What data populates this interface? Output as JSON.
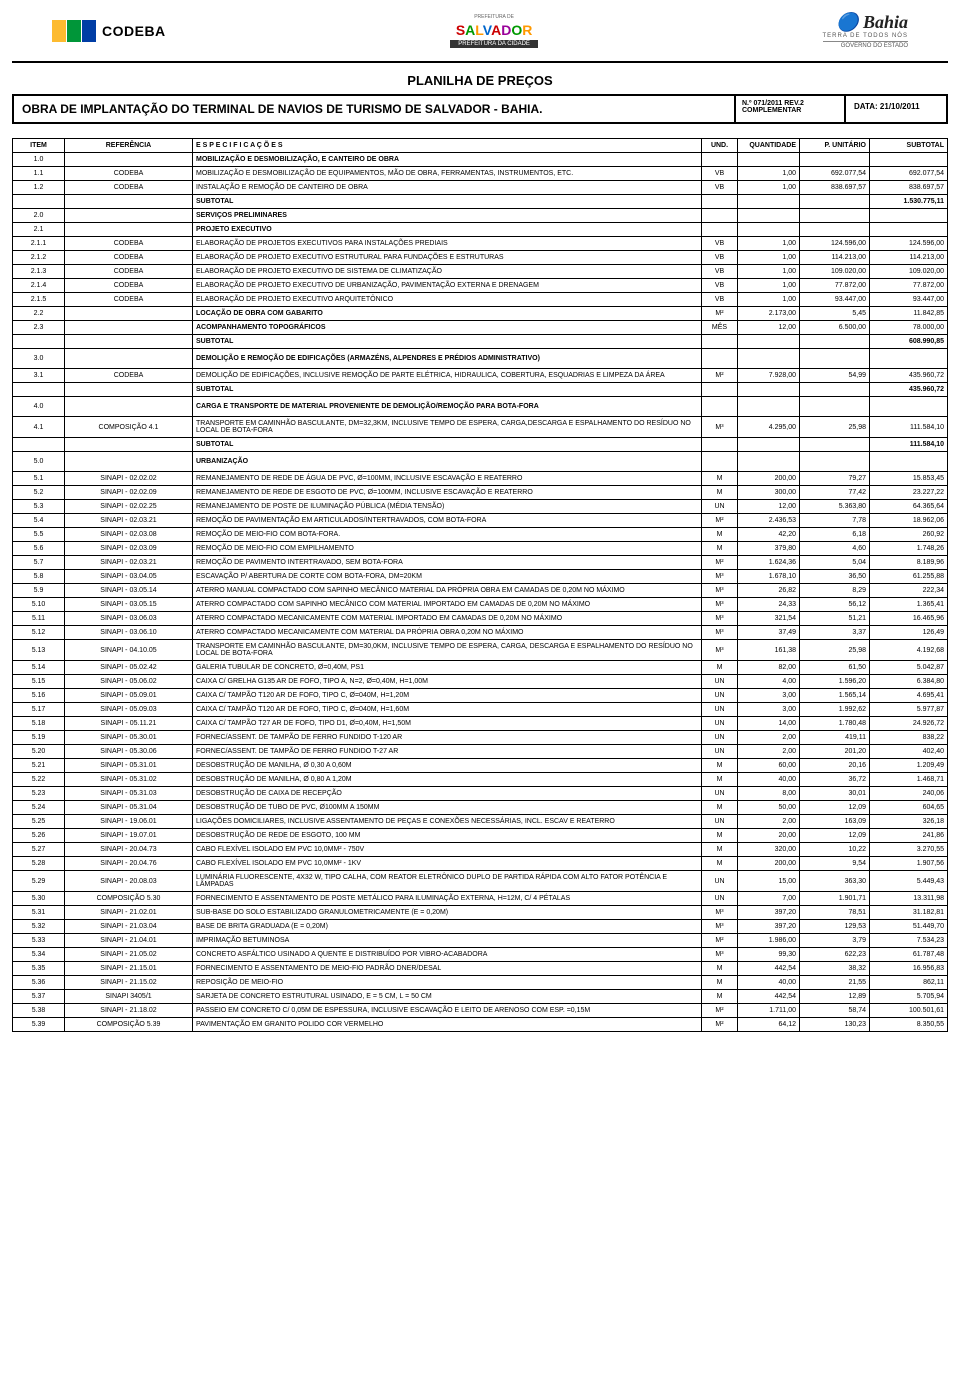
{
  "header": {
    "codeba": "CODEBA",
    "salvador_top": "PREFEITURA DE",
    "salvador": "SALVADOR",
    "salvador_sub": "PREFEITURA DA CIDADE",
    "bahia": "Bahia",
    "bahia_tag": "TERRA DE TODOS NÓS",
    "bahia_gov": "GOVERNO DO ESTADO"
  },
  "doc": {
    "title": "PLANILHA DE PREÇOS",
    "obra": "OBRA DE IMPLANTAÇÃO DO TERMINAL DE NAVIOS DE TURISMO DE SALVADOR - BAHIA.",
    "rev_num": "N.º 071/2011    REV.2",
    "rev_comp": "COMPLEMENTAR",
    "data": "DATA: 21/10/2011"
  },
  "columns": {
    "item": "ITEM",
    "ref": "REFERÊNCIA",
    "esp": "E S P E C I F I C A Ç Õ E S",
    "und": "UND.",
    "qtd": "QUANTIDADE",
    "unit": "P. UNITÁRIO",
    "sub": "SUBTOTAL"
  },
  "rows": [
    {
      "type": "section",
      "item": "1.0",
      "esp": "MOBILIZAÇÃO E DESMOBILIZAÇÃO, E CANTEIRO DE OBRA"
    },
    {
      "item": "1.1",
      "ref": "CODEBA",
      "esp": "MOBILIZAÇÃO E DESMOBILIZAÇÃO DE EQUIPAMENTOS, MÃO DE OBRA, FERRAMENTAS, INSTRUMENTOS, ETC.",
      "und": "VB",
      "qtd": "1,00",
      "unit": "692.077,54",
      "sub": "692.077,54"
    },
    {
      "item": "1.2",
      "ref": "CODEBA",
      "esp": "INSTALAÇÃO E REMOÇÃO DE CANTEIRO DE OBRA",
      "und": "VB",
      "qtd": "1,00",
      "unit": "838.697,57",
      "sub": "838.697,57"
    },
    {
      "type": "subtotal",
      "esp": "SUBTOTAL",
      "sub": "1.530.775,11"
    },
    {
      "type": "section",
      "item": "2.0",
      "esp": "SERVIÇOS PRELIMINARES"
    },
    {
      "type": "section",
      "item": "2.1",
      "esp": "PROJETO EXECUTIVO"
    },
    {
      "item": "2.1.1",
      "ref": "CODEBA",
      "esp": "ELABORAÇÃO DE PROJETOS EXECUTIVOS PARA INSTALAÇÕES PREDIAIS",
      "und": "VB",
      "qtd": "1,00",
      "unit": "124.596,00",
      "sub": "124.596,00"
    },
    {
      "item": "2.1.2",
      "ref": "CODEBA",
      "esp": "ELABORAÇÃO DE PROJETO EXECUTIVO ESTRUTURAL PARA FUNDAÇÕES E ESTRUTURAS",
      "und": "VB",
      "qtd": "1,00",
      "unit": "114.213,00",
      "sub": "114.213,00"
    },
    {
      "item": "2.1.3",
      "ref": "CODEBA",
      "esp": "ELABORAÇÃO DE PROJETO EXECUTIVO DE SISTEMA DE CLIMATIZAÇÃO",
      "und": "VB",
      "qtd": "1,00",
      "unit": "109.020,00",
      "sub": "109.020,00"
    },
    {
      "item": "2.1.4",
      "ref": "CODEBA",
      "esp": "ELABORAÇÃO DE PROJETO EXECUTIVO DE URBANIZAÇÃO, PAVIMENTAÇÃO EXTERNA E DRENAGEM",
      "und": "VB",
      "qtd": "1,00",
      "unit": "77.872,00",
      "sub": "77.872,00"
    },
    {
      "item": "2.1.5",
      "ref": "CODEBA",
      "esp": "ELABORAÇÃO DE PROJETO EXECUTIVO ARQUITETÔNICO",
      "und": "VB",
      "qtd": "1,00",
      "unit": "93.447,00",
      "sub": "93.447,00"
    },
    {
      "type": "section",
      "item": "2.2",
      "esp": "LOCAÇÃO DE OBRA COM GABARITO",
      "und": "M²",
      "qtd": "2.173,00",
      "unit": "5,45",
      "sub": "11.842,85"
    },
    {
      "type": "section",
      "item": "2.3",
      "esp": "ACOMPANHAMENTO TOPOGRÁFICOS",
      "und": "MÊS",
      "qtd": "12,00",
      "unit": "6.500,00",
      "sub": "78.000,00"
    },
    {
      "type": "subtotal",
      "esp": "SUBTOTAL",
      "sub": "608.990,85"
    },
    {
      "type": "section",
      "item": "3.0",
      "esp": "DEMOLIÇÃO E REMOÇÃO DE EDIFICAÇÕES (ARMAZÉNS, ALPENDRES E PRÉDIOS ADMINISTRATIVO)",
      "tall": true
    },
    {
      "item": "3.1",
      "ref": "CODEBA",
      "esp": "DEMOLIÇÃO DE EDIFICAÇÕES, INCLUSIVE REMOÇÃO DE PARTE ELÉTRICA, HIDRAULICA, COBERTURA, ESQUADRIAS E LIMPEZA DA ÁREA",
      "und": "M²",
      "qtd": "7.928,00",
      "unit": "54,99",
      "sub": "435.960,72"
    },
    {
      "type": "subtotal",
      "esp": "SUBTOTAL",
      "sub": "435.960,72"
    },
    {
      "type": "section",
      "item": "4.0",
      "esp": "CARGA E TRANSPORTE DE MATERIAL PROVENIENTE DE DEMOLIÇÃO/REMOÇÃO PARA BOTA-FORA",
      "tall": true
    },
    {
      "item": "4.1",
      "ref": "COMPOSIÇÃO          4.1",
      "esp": "TRANSPORTE EM CAMINHÃO BASCULANTE, DM=32,3KM, INCLUSIVE TEMPO DE ESPERA, CARGA,DESCARGA E ESPALHAMENTO DO RESÍDUO NO LOCAL DE BOTA-FORA",
      "und": "M³",
      "qtd": "4.295,00",
      "unit": "25,98",
      "sub": "111.584,10"
    },
    {
      "type": "subtotal",
      "esp": "SUBTOTAL",
      "sub": "111.584,10"
    },
    {
      "type": "section",
      "item": "5.0",
      "esp": "URBANIZAÇÃO",
      "tall": true
    },
    {
      "item": "5.1",
      "ref": "SINAPI - 02.02.02",
      "esp": "REMANEJAMENTO DE REDE DE ÁGUA DE PVC, Ø=100MM, INCLUSIVE ESCAVAÇÃO E REATERRO",
      "und": "M",
      "qtd": "200,00",
      "unit": "79,27",
      "sub": "15.853,45"
    },
    {
      "item": "5.2",
      "ref": "SINAPI - 02.02.09",
      "esp": "REMANEJAMENTO DE REDE DE ESGOTO DE PVC, Ø=100MM, INCLUSIVE ESCAVAÇÃO E REATERRO",
      "und": "M",
      "qtd": "300,00",
      "unit": "77,42",
      "sub": "23.227,22"
    },
    {
      "item": "5.3",
      "ref": "SINAPI - 02.02.25",
      "esp": "REMANEJAMENTO DE POSTE DE ILUMINAÇÃO PÚBLICA (MÉDIA TENSÃO)",
      "und": "UN",
      "qtd": "12,00",
      "unit": "5.363,80",
      "sub": "64.365,64"
    },
    {
      "item": "5.4",
      "ref": "SINAPI - 02.03.21",
      "esp": "REMOÇÃO DE PAVIMENTAÇÃO EM ARTICULADOS/INTERTRAVADOS, COM BOTA-FORA",
      "und": "M²",
      "qtd": "2.436,53",
      "unit": "7,78",
      "sub": "18.962,06"
    },
    {
      "item": "5.5",
      "ref": "SINAPI - 02.03.08",
      "esp": "REMOÇÃO DE MEIO-FIO COM BOTA-FORA.",
      "und": "M",
      "qtd": "42,20",
      "unit": "6,18",
      "sub": "260,92"
    },
    {
      "item": "5.6",
      "ref": "SINAPI - 02.03.09",
      "esp": "REMOÇÃO DE MEIO-FIO COM EMPILHAMENTO",
      "und": "M",
      "qtd": "379,80",
      "unit": "4,60",
      "sub": "1.748,26"
    },
    {
      "item": "5.7",
      "ref": "SINAPI - 02.03.21",
      "esp": "REMOÇÃO DE PAVIMENTO INTERTRAVADO, SEM BOTA-FORA",
      "und": "M²",
      "qtd": "1.624,36",
      "unit": "5,04",
      "sub": "8.189,96"
    },
    {
      "item": "5.8",
      "ref": "SINAPI - 03.04.05",
      "esp": "ESCAVAÇÃO P/ ABERTURA DE CORTE COM BOTA-FORA, DM=20KM",
      "und": "M³",
      "qtd": "1.678,10",
      "unit": "36,50",
      "sub": "61.255,88"
    },
    {
      "item": "5.9",
      "ref": "SINAPI - 03.05.14",
      "esp": "ATERRO MANUAL COMPACTADO COM SAPINHO MECÂNICO MATERIAL DA PRÓPRIA OBRA EM CAMADAS DE 0,20M NO MÁXIMO",
      "und": "M³",
      "qtd": "26,82",
      "unit": "8,29",
      "sub": "222,34"
    },
    {
      "item": "5.10",
      "ref": "SINAPI - 03.05.15",
      "esp": "ATERRO COMPACTADO COM SAPINHO MECÂNICO COM MATERIAL IMPORTADO EM CAMADAS DE 0,20M NO MÁXIMO",
      "und": "M³",
      "qtd": "24,33",
      "unit": "56,12",
      "sub": "1.365,41"
    },
    {
      "item": "5.11",
      "ref": "SINAPI - 03.06.03",
      "esp": "ATERRO COMPACTADO MECANICAMENTE COM MATERIAL IMPORTADO EM CAMADAS DE 0,20M NO MÁXIMO",
      "und": "M³",
      "qtd": "321,54",
      "unit": "51,21",
      "sub": "16.465,96"
    },
    {
      "item": "5.12",
      "ref": "SINAPI - 03.06.10",
      "esp": "ATERRO COMPACTADO MECANICAMENTE COM MATERIAL DA PRÓPRIA OBRA 0,20M NO MÁXIMO",
      "und": "M³",
      "qtd": "37,49",
      "unit": "3,37",
      "sub": "126,49"
    },
    {
      "item": "5.13",
      "ref": "SINAPI - 04.10.05",
      "esp": " TRANSPORTE EM CAMINHÃO BASCULANTE, DM=30,0KM, INCLUSIVE TEMPO DE ESPERA, CARGA, DESCARGA E ESPALHAMENTO DO RESÍDUO NO LOCAL DE BOTA-FORA",
      "und": "M³",
      "qtd": "161,38",
      "unit": "25,98",
      "sub": "4.192,68"
    },
    {
      "item": "5.14",
      "ref": "SINAPI - 05.02.42",
      "esp": "GALERIA TUBULAR DE CONCRETO, Ø=0,40M, PS1",
      "und": "M",
      "qtd": "82,00",
      "unit": "61,50",
      "sub": "5.042,87"
    },
    {
      "item": "5.15",
      "ref": "SINAPI - 05.06.02",
      "esp": "CAIXA C/ GRELHA G135 AR DE FOFO, TIPO A, N=2, Ø=0,40M, H=1,00M",
      "und": "UN",
      "qtd": "4,00",
      "unit": "1.596,20",
      "sub": "6.384,80"
    },
    {
      "item": "5.16",
      "ref": "SINAPI - 05.09.01",
      "esp": "CAIXA C/ TAMPÃO T120 AR DE FOFO, TIPO C, Ø=040M, H=1,20M",
      "und": "UN",
      "qtd": "3,00",
      "unit": "1.565,14",
      "sub": "4.695,41"
    },
    {
      "item": "5.17",
      "ref": "SINAPI - 05.09.03",
      "esp": "CAIXA C/ TAMPÃO T120 AR DE FOFO, TIPO C, Ø=040M, H=1,60M",
      "und": "UN",
      "qtd": "3,00",
      "unit": "1.992,62",
      "sub": "5.977,87"
    },
    {
      "item": "5.18",
      "ref": "SINAPI - 05.11.21",
      "esp": "CAIXA C/ TAMPÃO T27 AR DE FOFO, TIPO D1, Ø=0,40M, H=1,50M",
      "und": "UN",
      "qtd": "14,00",
      "unit": "1.780,48",
      "sub": "24.926,72"
    },
    {
      "item": "5.19",
      "ref": "SINAPI - 05.30.01",
      "esp": "FORNEC/ASSENT. DE TAMPÃO DE FERRO FUNDIDO T-120 AR",
      "und": "UN",
      "qtd": "2,00",
      "unit": "419,11",
      "sub": "838,22"
    },
    {
      "item": "5.20",
      "ref": "SINAPI - 05.30.06",
      "esp": "FORNEC/ASSENT. DE TAMPÃO DE FERRO FUNDIDO T-27 AR",
      "und": "UN",
      "qtd": "2,00",
      "unit": "201,20",
      "sub": "402,40"
    },
    {
      "item": "5.21",
      "ref": "SINAPI - 05.31.01",
      "esp": "DESOBSTRUÇÃO DE MANILHA, Ø 0,30 A 0,60M",
      "und": "M",
      "qtd": "60,00",
      "unit": "20,16",
      "sub": "1.209,49"
    },
    {
      "item": "5.22",
      "ref": "SINAPI - 05.31.02",
      "esp": "DESOBSTRUÇÃO DE MANILHA, Ø 0,80 A 1,20M",
      "und": "M",
      "qtd": "40,00",
      "unit": "36,72",
      "sub": "1.468,71"
    },
    {
      "item": "5.23",
      "ref": "SINAPI - 05.31.03",
      "esp": "DESOBSTRUÇÃO DE CAIXA DE RECEPÇÃO",
      "und": "UN",
      "qtd": "8,00",
      "unit": "30,01",
      "sub": "240,06"
    },
    {
      "item": "5.24",
      "ref": "SINAPI - 05.31.04",
      "esp": "DESOBSTRUÇÃO DE TUBO DE PVC, Ø100MM A 150MM",
      "und": "M",
      "qtd": "50,00",
      "unit": "12,09",
      "sub": "604,65"
    },
    {
      "item": "5.25",
      "ref": "SINAPI - 19.06.01",
      "esp": "LIGAÇÕES DOMICILIARES, INCLUSIVE ASSENTAMENTO DE PEÇAS E CONEXÕES NECESSÁRIAS, INCL. ESCAV E REATERRO",
      "und": "UN",
      "qtd": "2,00",
      "unit": "163,09",
      "sub": "326,18"
    },
    {
      "item": "5.26",
      "ref": "SINAPI - 19.07.01",
      "esp": "DESOBSTRUÇÃO DE REDE DE ESGOTO, 100 MM",
      "und": "M",
      "qtd": "20,00",
      "unit": "12,09",
      "sub": "241,86"
    },
    {
      "item": "5.27",
      "ref": "SINAPI - 20.04.73",
      "esp": "CABO FLEXÍVEL ISOLADO EM PVC 10,0MM² - 750V",
      "und": "M",
      "qtd": "320,00",
      "unit": "10,22",
      "sub": "3.270,55"
    },
    {
      "item": "5.28",
      "ref": "SINAPI - 20.04.76",
      "esp": "CABO FLEXÍVEL ISOLADO EM PVC 10,0MM² - 1KV",
      "und": "M",
      "qtd": "200,00",
      "unit": "9,54",
      "sub": "1.907,56"
    },
    {
      "item": "5.29",
      "ref": "SINAPI - 20.08.03",
      "esp": "LUMINÁRIA FLUORESCENTE, 4X32 W, TIPO CALHA, COM REATOR ELETRÔNICO DUPLO DE PARTIDA RÁPIDA COM ALTO FATOR POTÊNCIA E LÂMPADAS",
      "und": "UN",
      "qtd": "15,00",
      "unit": "363,30",
      "sub": "5.449,43"
    },
    {
      "item": "5.30",
      "ref": "COMPOSIÇÃO          5.30",
      "esp": "FORNECIMENTO E ASSENTAMENTO DE POSTE METÁLICO PARA ILUMINAÇÃO EXTERNA, H=12M, C/ 4 PÉTALAS",
      "und": "UN",
      "qtd": "7,00",
      "unit": "1.901,71",
      "sub": "13.311,98"
    },
    {
      "item": "5.31",
      "ref": "SINAPI - 21.02.01",
      "esp": "SUB-BASE DO SOLO ESTABILIZADO GRANULOMETRICAMENTE (E = 0,20M)",
      "und": "M³",
      "qtd": "397,20",
      "unit": "78,51",
      "sub": "31.182,81"
    },
    {
      "item": "5.32",
      "ref": "SINAPI - 21.03.04",
      "esp": "BASE DE BRITA GRADUADA (E = 0,20M)",
      "und": "M³",
      "qtd": "397,20",
      "unit": "129,53",
      "sub": "51.449,70"
    },
    {
      "item": "5.33",
      "ref": "SINAPI - 21.04.01",
      "esp": "IMPRIMAÇÃO BETUMINOSA",
      "und": "M²",
      "qtd": "1.986,00",
      "unit": "3,79",
      "sub": "7.534,23"
    },
    {
      "item": "5.34",
      "ref": "SINAPI - 21.05.02",
      "esp": "CONCRETO ASFÁLTICO USINADO A QUENTE E DISTRIBUÍDO  POR VIBRO-ACABADORA",
      "und": "M³",
      "qtd": "99,30",
      "unit": "622,23",
      "sub": "61.787,48"
    },
    {
      "item": "5.35",
      "ref": "SINAPI - 21.15.01",
      "esp": "FORNECIMENTO E ASSENTAMENTO DE MEIO-FIO PADRÃO DNER/DESAL",
      "und": "M",
      "qtd": "442,54",
      "unit": "38,32",
      "sub": "16.956,83"
    },
    {
      "item": "5.36",
      "ref": "SINAPI - 21.15.02",
      "esp": "REPOSIÇÃO DE MEIO-FIO",
      "und": "M",
      "qtd": "40,00",
      "unit": "21,55",
      "sub": "862,11"
    },
    {
      "item": "5.37",
      "ref": "SINAPI 3405/1",
      "esp": "SARJETA DE CONCRETO ESTRUTURAL USINADO, E = 5 CM, L = 50 CM",
      "und": "M",
      "qtd": "442,54",
      "unit": "12,89",
      "sub": "5.705,94"
    },
    {
      "item": "5.38",
      "ref": "SINAPI - 21.18.02",
      "esp": "PASSEIO EM CONCRETO C/ 0,05M DE ESPESSURA, INCLUSIVE ESCAVAÇÃO E LEITO DE ARENOSO COM ESP. =0,15M",
      "und": "M²",
      "qtd": "1.711,00",
      "unit": "58,74",
      "sub": "100.501,61"
    },
    {
      "item": "5.39",
      "ref": "COMPOSIÇÃO          5.39",
      "esp": "PAVIMENTAÇÃO EM GRANITO POLIDO COR VERMELHO",
      "und": "M²",
      "qtd": "64,12",
      "unit": "130,23",
      "sub": "8.350,55"
    }
  ]
}
